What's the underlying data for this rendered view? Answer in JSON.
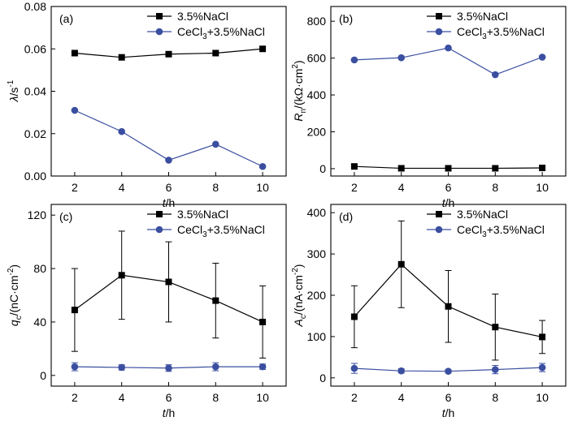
{
  "chart_data": [
    {
      "type": "line",
      "panel": "(a)",
      "categories": [
        2,
        4,
        6,
        8,
        10
      ],
      "xlabel": {
        "symbol": "t",
        "unit": "/h"
      },
      "ylabel": {
        "symbol": "λ",
        "unit": "/s",
        "sup": "-1"
      },
      "ylim": [
        0,
        0.08
      ],
      "yticks": [
        "0.00",
        "0.02",
        "0.04",
        "0.06",
        "0.08"
      ],
      "legend_position": "top-right",
      "series": [
        {
          "name": "3.5%NaCl",
          "marker": "square",
          "color": "#000000",
          "values": [
            0.058,
            0.056,
            0.0575,
            0.058,
            0.06
          ]
        },
        {
          "name": "CeCl3+3.5%NaCl",
          "name_parts": [
            "CeCl",
            "3",
            "+3.5%NaCl"
          ],
          "marker": "circle",
          "color": "#3b4fa0",
          "values": [
            0.031,
            0.021,
            0.0075,
            0.015,
            0.0045
          ]
        }
      ]
    },
    {
      "type": "line",
      "panel": "(b)",
      "categories": [
        2,
        4,
        6,
        8,
        10
      ],
      "xlabel": {
        "symbol": "t",
        "unit": "/h"
      },
      "ylabel": {
        "symbol": "R",
        "sub": "n",
        "unit": "/(kΩ·cm",
        "sup": "2",
        "tail": ")"
      },
      "ylim": [
        -40,
        880
      ],
      "yticks": [
        "0",
        "200",
        "400",
        "600",
        "800"
      ],
      "legend_position": "top-right",
      "series": [
        {
          "name": "3.5%NaCl",
          "marker": "square",
          "color": "#000000",
          "values": [
            12,
            2,
            2,
            2,
            4
          ]
        },
        {
          "name": "CeCl3+3.5%NaCl",
          "name_parts": [
            "CeCl",
            "3",
            "+3.5%NaCl"
          ],
          "marker": "circle",
          "color": "#3b4fa0",
          "values": [
            590,
            602,
            655,
            510,
            605
          ]
        }
      ]
    },
    {
      "type": "line",
      "panel": "(c)",
      "categories": [
        2,
        4,
        6,
        8,
        10
      ],
      "xlabel": {
        "symbol": "t",
        "unit": "/h"
      },
      "ylabel": {
        "symbol": "q",
        "sub": "c",
        "unit": "/(nC·cm",
        "sup": "-2",
        "tail": ")"
      },
      "ylim": [
        -8,
        128
      ],
      "yticks": [
        "0",
        "40",
        "80",
        "120"
      ],
      "legend_position": "top-right",
      "series": [
        {
          "name": "3.5%NaCl",
          "marker": "square",
          "color": "#000000",
          "values": [
            49,
            75,
            70,
            56,
            40
          ],
          "errors": [
            31,
            33,
            30,
            28,
            27
          ]
        },
        {
          "name": "CeCl3+3.5%NaCl",
          "name_parts": [
            "CeCl",
            "3",
            "+3.5%NaCl"
          ],
          "marker": "circle",
          "color": "#3b4fa0",
          "values": [
            6.5,
            6,
            5.5,
            6.5,
            6.5
          ],
          "errors": [
            3,
            2,
            2.5,
            3,
            2
          ]
        }
      ]
    },
    {
      "type": "line",
      "panel": "(d)",
      "categories": [
        2,
        4,
        6,
        8,
        10
      ],
      "xlabel": {
        "symbol": "t",
        "unit": "/h"
      },
      "ylabel": {
        "symbol": "A",
        "sub": "c",
        "unit": "/(nA·cm",
        "sup": "-2",
        "tail": ")"
      },
      "ylim": [
        -20,
        420
      ],
      "yticks": [
        "0",
        "100",
        "200",
        "300",
        "400"
      ],
      "legend_position": "top-right",
      "series": [
        {
          "name": "3.5%NaCl",
          "marker": "square",
          "color": "#000000",
          "values": [
            148,
            275,
            173,
            123,
            99
          ],
          "errors": [
            75,
            105,
            87,
            80,
            40
          ]
        },
        {
          "name": "CeCl3+3.5%NaCl",
          "name_parts": [
            "CeCl",
            "3",
            "+3.5%NaCl"
          ],
          "marker": "circle",
          "color": "#3b4fa0",
          "values": [
            23,
            17,
            16,
            20,
            25
          ],
          "errors": [
            12,
            5,
            4,
            10,
            10
          ]
        }
      ]
    }
  ]
}
